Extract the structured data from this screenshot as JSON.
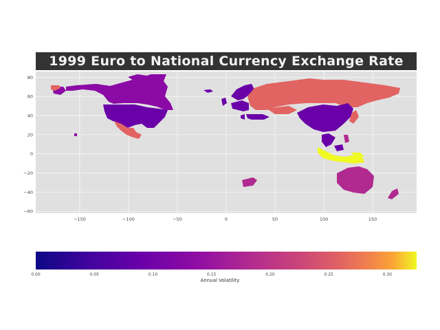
{
  "title": "1999 Euro to National Currency Exchange Rate",
  "map": {
    "lon_ticks": [
      -150,
      -100,
      -50,
      0,
      50,
      100,
      150
    ],
    "lat_ticks": [
      80,
      60,
      40,
      20,
      0,
      -20,
      -40,
      -60
    ],
    "lon_range": [
      -195,
      195
    ],
    "lat_range": [
      -62,
      86
    ],
    "background": "#e0e0e0",
    "grid": true,
    "colors": {
      "low": "#0d0887",
      "mid_blue": "#6a00a8",
      "purple": "#8b0aa5",
      "magenta": "#b12a90",
      "red_orange": "#e16462",
      "orange": "#fca636",
      "yellow": "#f0f921"
    }
  },
  "colorbar": {
    "label": "Annual Volatility",
    "ticks": [
      "0.00",
      "0.05",
      "0.10",
      "0.15",
      "0.20",
      "0.25",
      "0.30"
    ],
    "range": [
      0,
      0.325
    ],
    "colormap": "plasma"
  }
}
